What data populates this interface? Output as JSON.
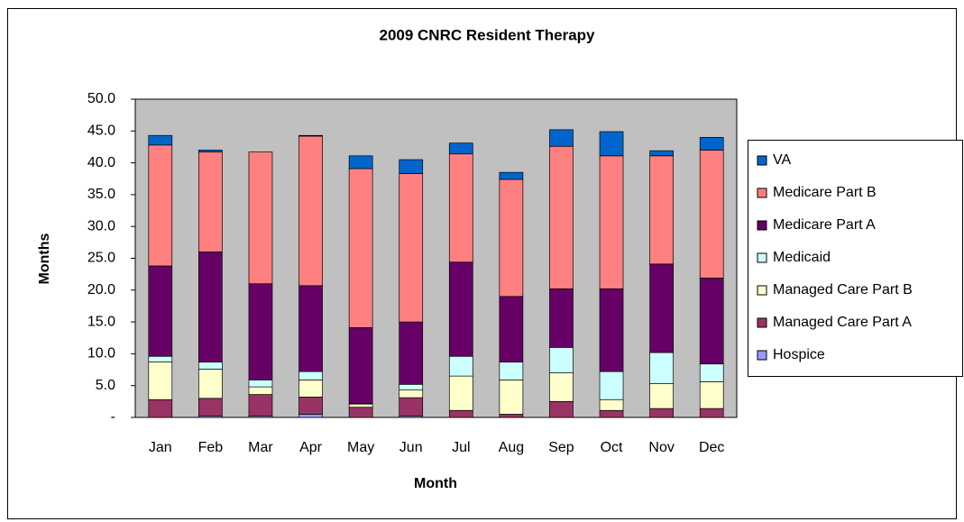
{
  "chart_data": {
    "type": "stacked_bar",
    "title": "2009 CNRC Resident Therapy",
    "x_label": "Month",
    "y_label": "Months",
    "categories": [
      "Jan",
      "Feb",
      "Mar",
      "Apr",
      "May",
      "Jun",
      "Jul",
      "Aug",
      "Sep",
      "Oct",
      "Nov",
      "Dec"
    ],
    "series": [
      {
        "name": "Hospice",
        "color": "#9999ff",
        "values": [
          0,
          0.2,
          0.2,
          0.5,
          0,
          0.2,
          0,
          0,
          0,
          0,
          0,
          0
        ]
      },
      {
        "name": "Managed Care Part A",
        "color": "#993366",
        "values": [
          2.8,
          2.8,
          3.4,
          2.7,
          1.6,
          2.9,
          1.1,
          0.5,
          2.5,
          1.1,
          1.4,
          1.4
        ]
      },
      {
        "name": "Managed Care Part B",
        "color": "#ffffcc",
        "values": [
          5.9,
          4.6,
          1.2,
          2.7,
          0.5,
          1.2,
          5.4,
          5.4,
          4.5,
          1.7,
          3.9,
          4.2
        ]
      },
      {
        "name": "Medicaid",
        "color": "#ccffff",
        "values": [
          0.9,
          1.1,
          1.1,
          1.3,
          0.1,
          0.9,
          3.1,
          2.8,
          4.0,
          4.4,
          4.9,
          2.8
        ]
      },
      {
        "name": "Medicare Part A",
        "color": "#660066",
        "values": [
          14.2,
          17.3,
          15.1,
          13.5,
          11.9,
          9.8,
          14.8,
          10.3,
          9.2,
          13.0,
          13.9,
          13.5
        ]
      },
      {
        "name": "Medicare Part B",
        "color": "#ff8080",
        "values": [
          19.0,
          15.7,
          20.7,
          23.5,
          25.0,
          23.3,
          17.0,
          18.4,
          22.4,
          20.9,
          17.0,
          20.1
        ]
      },
      {
        "name": "VA",
        "color": "#0066cc",
        "values": [
          1.5,
          0.3,
          0,
          0.1,
          2.0,
          2.2,
          1.7,
          1.1,
          2.6,
          3.8,
          0.8,
          2.0
        ]
      }
    ],
    "ylim": [
      0,
      50
    ],
    "yticks": [
      {
        "value": 0,
        "label": "-"
      },
      {
        "value": 5,
        "label": "5.0"
      },
      {
        "value": 10,
        "label": "10.0"
      },
      {
        "value": 15,
        "label": "15.0"
      },
      {
        "value": 20,
        "label": "20.0"
      },
      {
        "value": 25,
        "label": "25.0"
      },
      {
        "value": 30,
        "label": "30.0"
      },
      {
        "value": 35,
        "label": "35.0"
      },
      {
        "value": 40,
        "label": "40.0"
      },
      {
        "value": 45,
        "label": "45.0"
      },
      {
        "value": 50,
        "label": "50.0"
      }
    ],
    "grid": false,
    "plot_background": "#c0c0c0",
    "legend": "right"
  }
}
